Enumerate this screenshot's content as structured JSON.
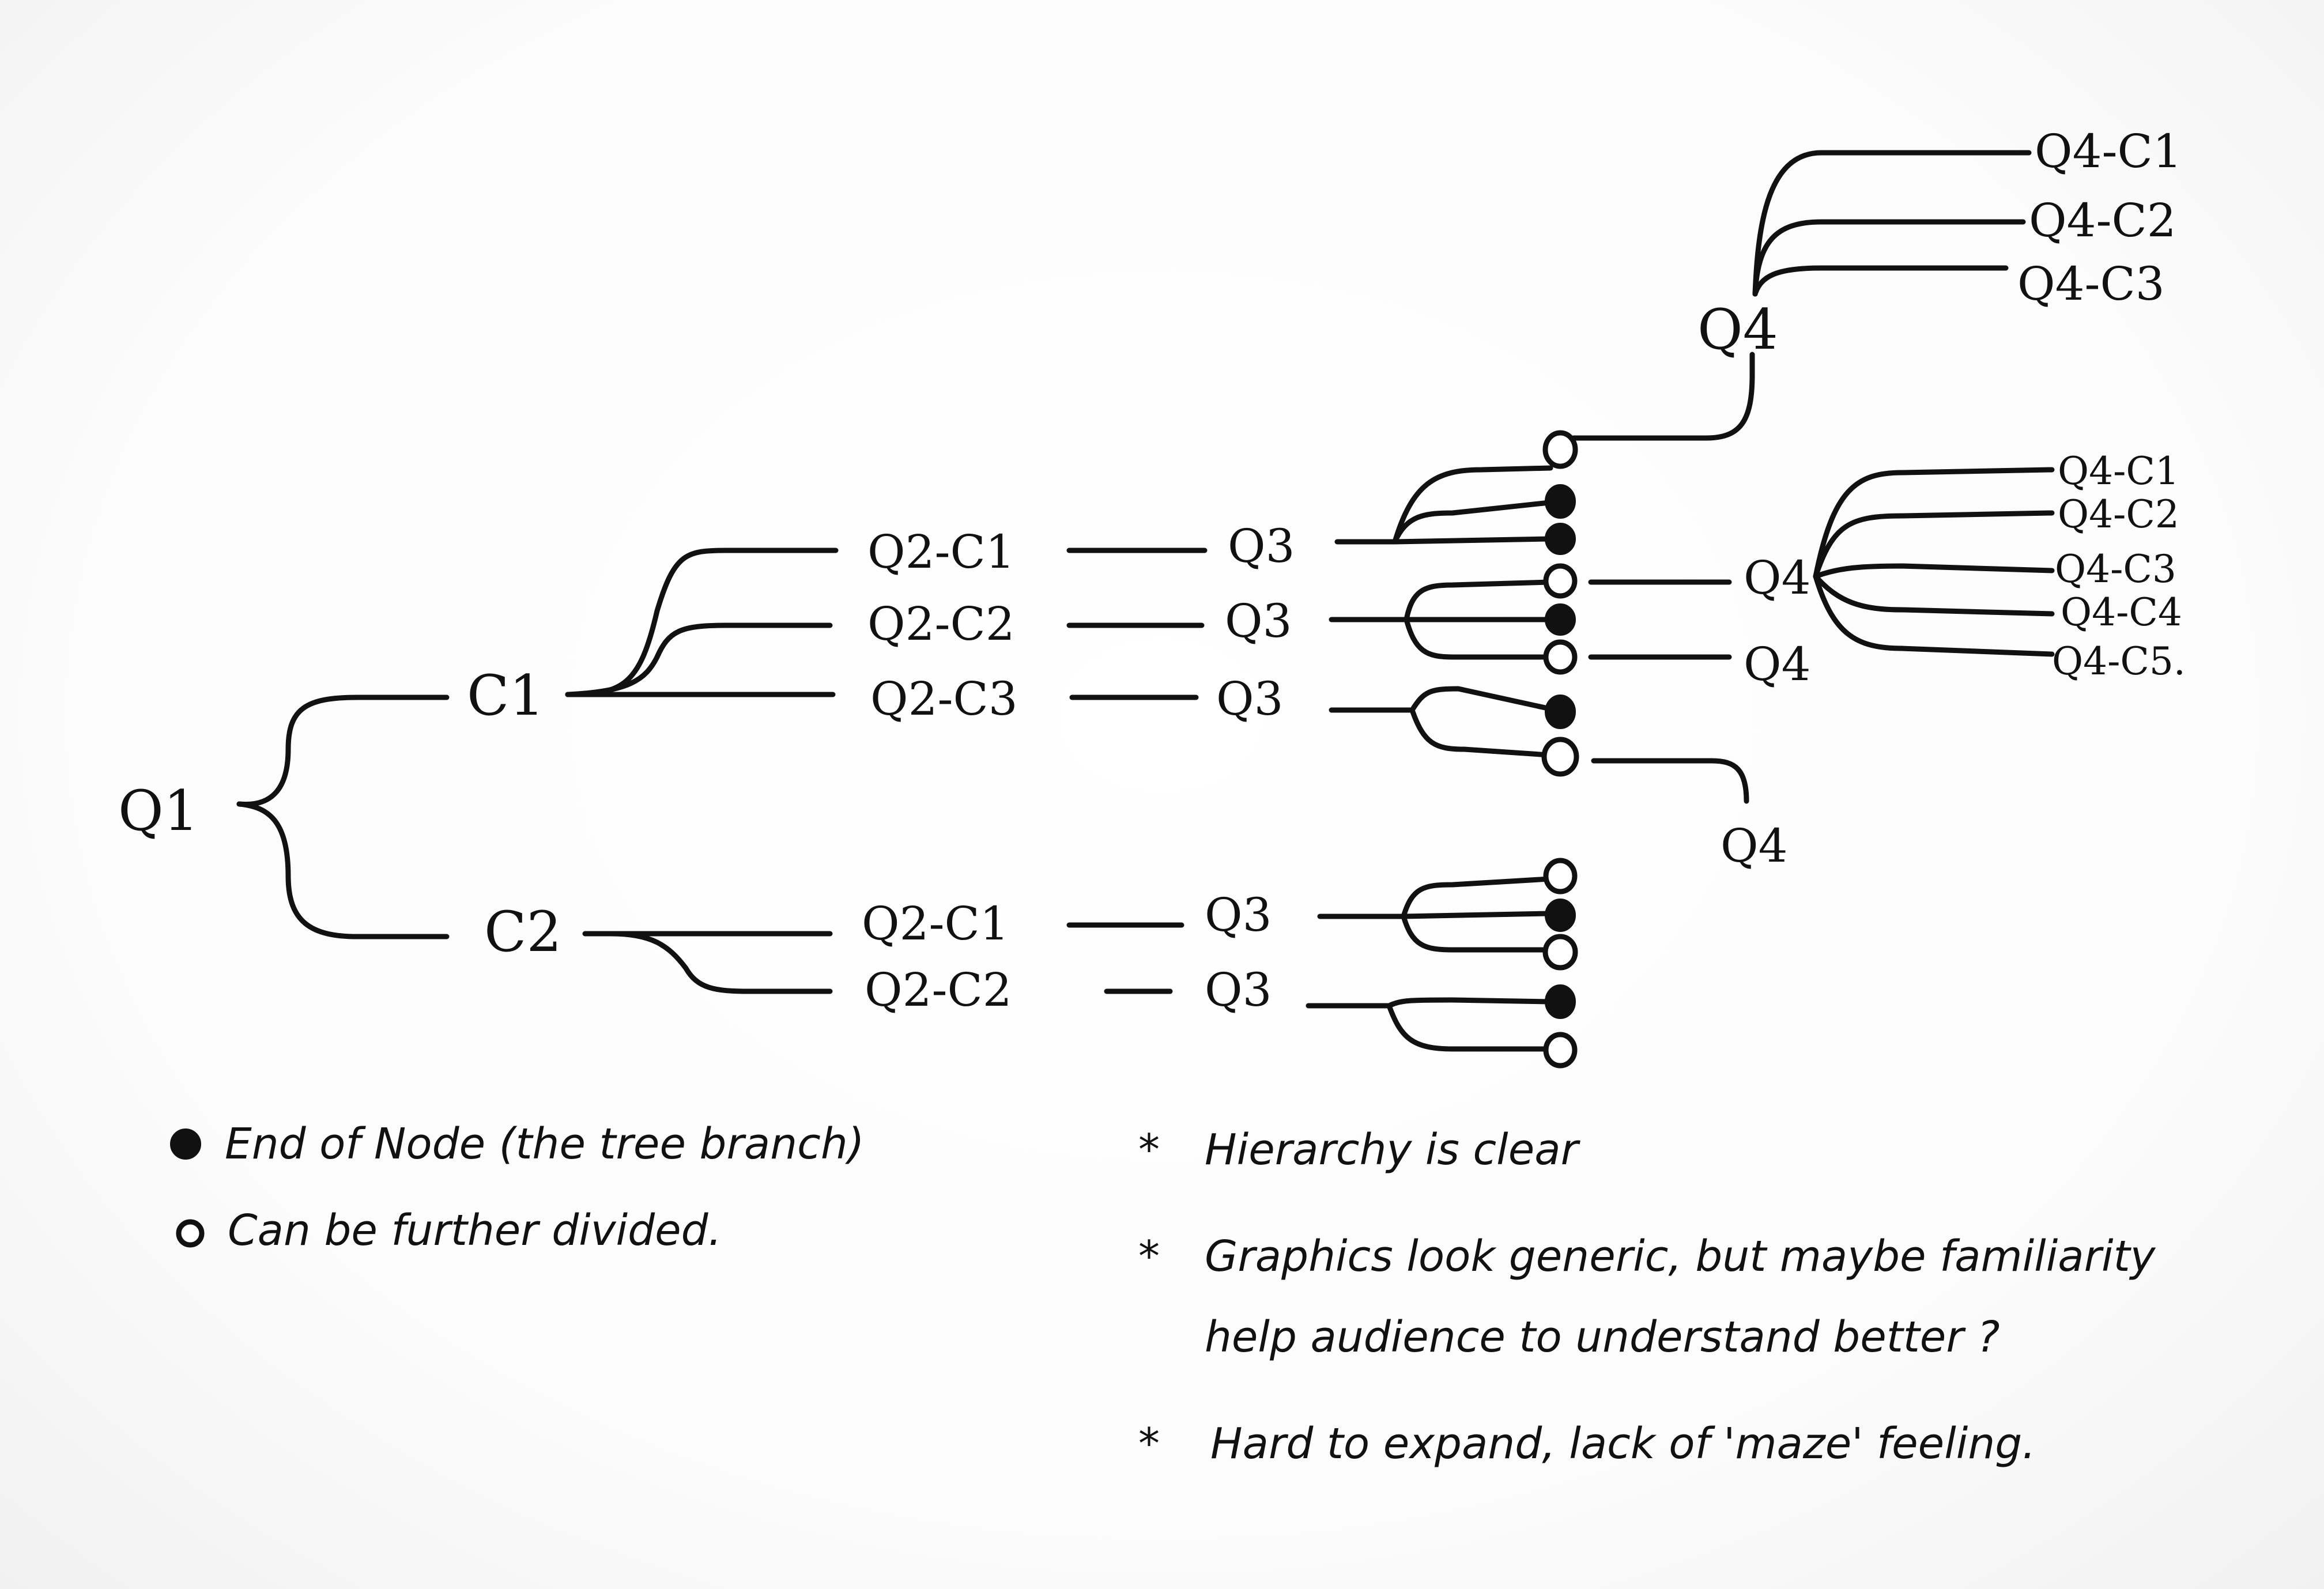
{
  "nodes": {
    "q1": "Q1",
    "c1": "C1",
    "c2": "C2",
    "c1_q2_c1": "Q2-C1",
    "c1_q2_c2": "Q2-C2",
    "c1_q2_c3": "Q2-C3",
    "c1_q3_a": "Q3",
    "c1_q3_b": "Q3",
    "c1_q3_c": "Q3",
    "c2_q2_c1": "Q2-C1",
    "c2_q2_c2": "Q2-C2",
    "c2_q3_a": "Q3",
    "c2_q3_b": "Q3",
    "q4_top": "Q4",
    "q4_mid": "Q4",
    "q4_lower": "Q4",
    "q4_bottom": "Q4"
  },
  "q4_top_children": [
    "Q4-C1",
    "Q4-C2",
    "Q4-C3"
  ],
  "q4_mid_children": [
    "Q4-C1",
    "Q4-C2",
    "Q4-C3",
    "Q4-C4",
    "Q4-C5."
  ],
  "legend": {
    "end_node": "End of Node (the tree branch)",
    "open_node": "Can be further divided."
  },
  "notes": [
    "Hierarchy is clear",
    "Graphics look generic, but maybe familiarity",
    "help audience to understand better ?",
    "Hard to expand, lack of 'maze' feeling."
  ],
  "note_marker": "*"
}
